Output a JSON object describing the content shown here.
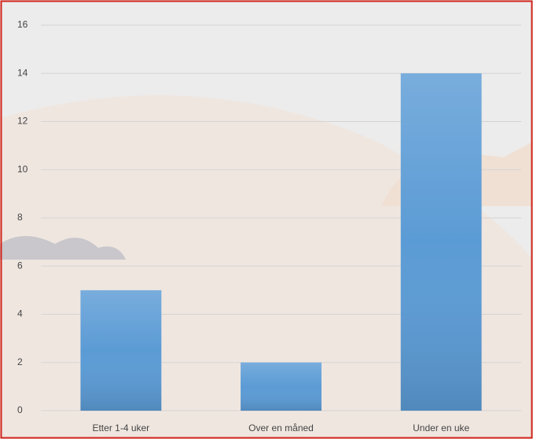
{
  "chart_data": {
    "type": "bar",
    "categories": [
      "Etter 1-4 uker",
      "Over en måned",
      "Under en uke"
    ],
    "values": [
      5,
      2,
      14
    ],
    "color": "#5b9bd5",
    "ylim": [
      0,
      16
    ],
    "yticks": [
      0,
      2,
      4,
      6,
      8,
      10,
      12,
      14,
      16
    ],
    "grid": true
  }
}
